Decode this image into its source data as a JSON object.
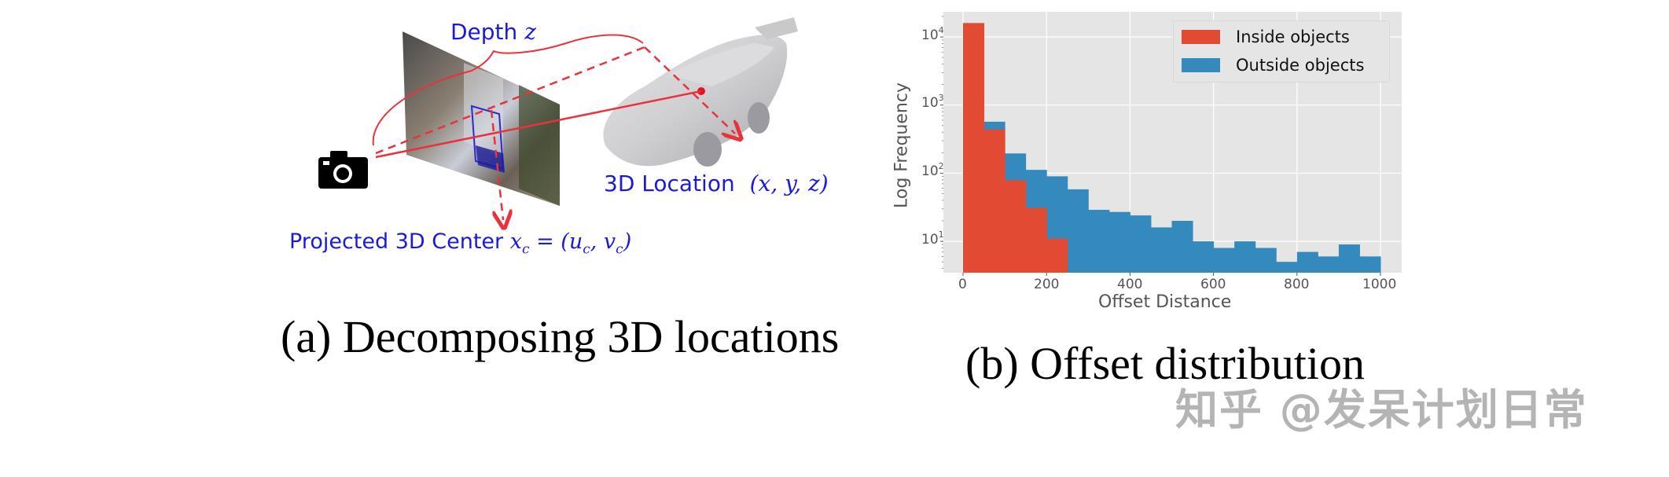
{
  "figure_a": {
    "labels": {
      "depth": "Depth",
      "depth_var": "z",
      "location": "3D Location",
      "location_vars": "(x, y, z)",
      "projected": "Projected 3D Center",
      "projected_math": "x",
      "projected_sub": "c",
      "projected_eq": " = (u",
      "projected_eq2": ", v",
      "projected_close": ")"
    },
    "icons": {
      "camera": "camera-icon"
    },
    "colors": {
      "label_blue": "#1a1adc",
      "arrow_red": "#e8323c"
    },
    "caption": "(a) Decomposing 3D locations"
  },
  "figure_b": {
    "caption": "(b) Offset distribution"
  },
  "watermark": "知乎 @发呆计划日常",
  "chart_data": {
    "type": "bar",
    "title": "",
    "xlabel": "Offset Distance",
    "ylabel": "Log Frequency",
    "yscale": "log",
    "xlim": [
      -50,
      1050
    ],
    "ylim": [
      3.5,
      22000
    ],
    "xticks": [
      0,
      200,
      400,
      600,
      800,
      1000
    ],
    "yticks": [
      "10^1",
      "10^2",
      "10^3",
      "10^4"
    ],
    "grid": true,
    "legend_position": "upper right",
    "bin_width": 50,
    "bin_edges": [
      0,
      50,
      100,
      150,
      200,
      250,
      300,
      350,
      400,
      450,
      500,
      550,
      600,
      650,
      700,
      750,
      800,
      850,
      900,
      950,
      1000
    ],
    "series": [
      {
        "name": "Outside objects",
        "color": "#348abd",
        "values": [
          0,
          570,
          195,
          112,
          90,
          58,
          29,
          27,
          24,
          16,
          20,
          10,
          8,
          10,
          8,
          5,
          7,
          6,
          9,
          6
        ]
      },
      {
        "name": "Inside objects",
        "color": "#e24a33",
        "values": [
          16000,
          440,
          79,
          31,
          11,
          0,
          0,
          0,
          0,
          0,
          0,
          0,
          0,
          0,
          0,
          0,
          0,
          0,
          0,
          0
        ]
      }
    ],
    "style": {
      "background": "#e5e5e5",
      "grid_color": "#ffffff",
      "tick_color": "#555555"
    }
  }
}
